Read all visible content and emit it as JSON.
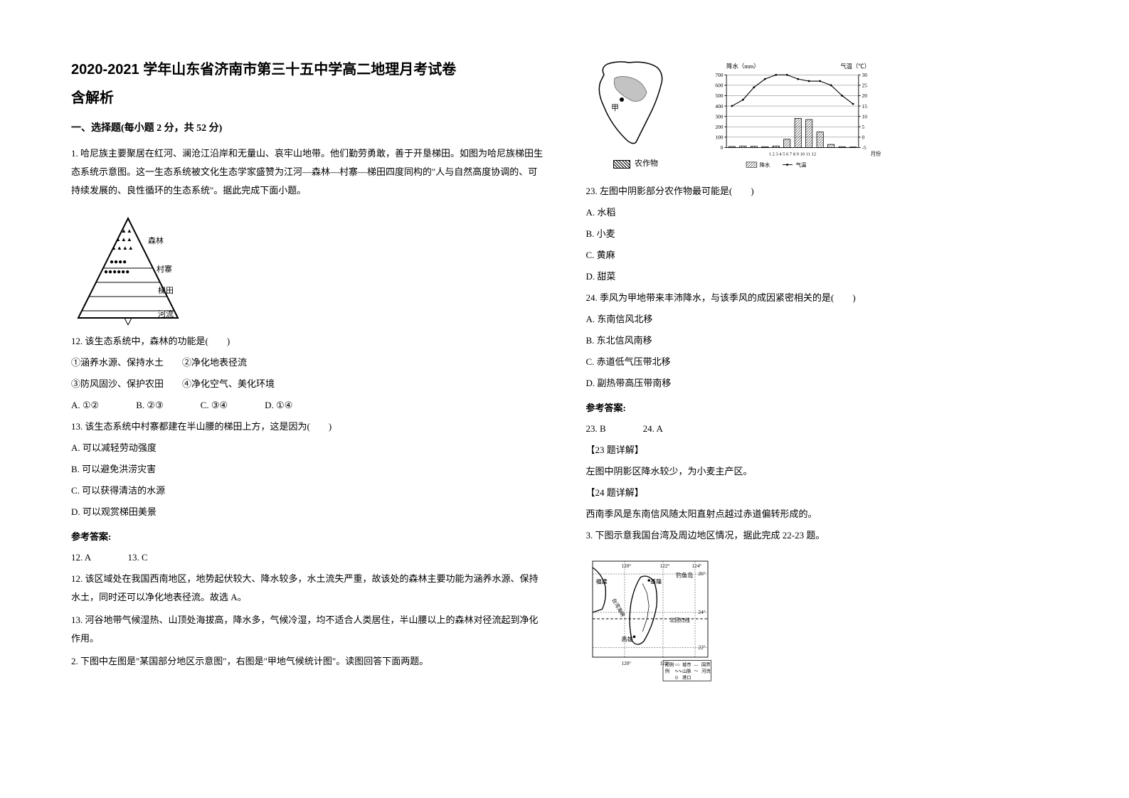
{
  "title_line1": "2020-2021 学年山东省济南市第三十五中学高二地理月考试卷",
  "title_line2": "含解析",
  "section1_heading": "一、选择题(每小题 2 分，共 52 分)",
  "q1_intro": "1. 哈尼族主要聚居在红河、澜沧江沿岸和无量山、哀牢山地带。他们勤劳勇敢，善于开垦梯田。如图为哈尼族梯田生态系统示意图。这一生态系统被文化生态学家盛赞为江河—森林—村寨—梯田四度同构的\"人与自然高度协调的、可持续发展的、良性循环的生态系统\"。据此完成下面小题。",
  "terrace_labels": {
    "forest": "森林",
    "village": "村寨",
    "terrace": "梯田",
    "river": "河流"
  },
  "q12_stem": "12. 该生态系统中，森林的功能是(　　)",
  "q12_opt1": "①涵养水源、保持水土　　②净化地表径流",
  "q12_opt2": "③防风固沙、保护农田　　④净化空气、美化环境",
  "q12_choices": "A. ①②　　　　B. ②③　　　　C. ③④　　　　D. ①④",
  "q13_stem": "13. 该生态系统中村寨都建在半山腰的梯田上方，这是因为(　　)",
  "q13_a": "A. 可以减轻劳动强度",
  "q13_b": "B. 可以避免洪涝灾害",
  "q13_c": "C. 可以获得清洁的水源",
  "q13_d": "D. 可以观赏梯田美景",
  "ans_heading": "参考答案:",
  "ans_12_13": "12. A　　　　13. C",
  "ans_12_exp": "12. 该区域处在我国西南地区，地势起伏较大、降水较多，水土流失严重，故该处的森林主要功能为涵养水源、保持水土，同时还可以净化地表径流。故选 A。",
  "ans_13_exp": "13. 河谷地带气候湿热、山顶处海拔高，降水多，气候冷湿，均不适合人类居住，半山腰以上的森林对径流起到净化作用。",
  "q2_intro": "2. 下图中左图是\"某国部分地区示意图\"，右图是\"甲地气候统计图\"。读图回答下面两题。",
  "map_label_jia": "甲",
  "legend_crops": "农作物",
  "legend_precip": "降水",
  "legend_temp": "气温",
  "chart_y_left_label": "降水（mm）",
  "chart_y_right_label": "气温（℃）",
  "chart_x_label": "月份",
  "chart_y_left_ticks": [
    "700",
    "600",
    "500",
    "400",
    "300",
    "200",
    "100",
    "0"
  ],
  "chart_y_right_ticks": [
    "30",
    "25",
    "20",
    "15",
    "10",
    "5",
    "0",
    "-5"
  ],
  "chart_x_ticks": "1 2 3 4 5 6 7 8 9 10 11 12",
  "chart_data": {
    "months": [
      1,
      2,
      3,
      4,
      5,
      6,
      7,
      8,
      9,
      10,
      11,
      12
    ],
    "precip": [
      10,
      15,
      12,
      8,
      15,
      80,
      280,
      270,
      150,
      30,
      8,
      5
    ],
    "temp": [
      15,
      18,
      24,
      28,
      30,
      30,
      28,
      27,
      27,
      25,
      20,
      16
    ],
    "bar_color": "#ffffff",
    "bar_border": "#000000",
    "line_color": "#000000",
    "grid_color": "#000000",
    "y_left_max": 700,
    "y_right_max": 30,
    "y_right_min": -5
  },
  "q23_stem": "23. 左图中阴影部分农作物最可能是(　　)",
  "q23_a": "A. 水稻",
  "q23_b": "B. 小麦",
  "q23_c": "C. 黄麻",
  "q23_d": "D. 甜菜",
  "q24_stem": "24. 季风为甲地带来丰沛降水，与该季风的成因紧密相关的是(　　)",
  "q24_a": "A. 东南信风北移",
  "q24_b": "B. 东北信风南移",
  "q24_c": "C. 赤道低气压带北移",
  "q24_d": "D. 副热带高压带南移",
  "ans_23_24": "23. B　　　　24. A",
  "exp23_heading": "【23 题详解】",
  "exp23_text": "左图中阴影区降水较少，为小麦主产区。",
  "exp24_heading": "【24 题详解】",
  "exp24_text": "西南季风是东南信风随太阳直射点越过赤道偏转形成的。",
  "q3_intro": "3. 下图示意我国台湾及周边地区情况，据此完成 22-23 题。",
  "taiwan_labels": {
    "fujian": "福建",
    "taiwan": "台湾",
    "jilong": "基隆",
    "diaoyudao": "钓鱼岛",
    "gaoxiong": "高雄",
    "tropic": "北回归线",
    "strait": "台湾海峡",
    "legend_title": "图例",
    "legend_city": "城市",
    "legend_mountain": "山脉",
    "legend_border": "国界",
    "legend_river": "河流",
    "legend_port": "港口"
  },
  "taiwan_coords": {
    "lon": [
      "120°",
      "122°",
      "124°"
    ],
    "lat": [
      "22°",
      "24°",
      "26°"
    ]
  }
}
